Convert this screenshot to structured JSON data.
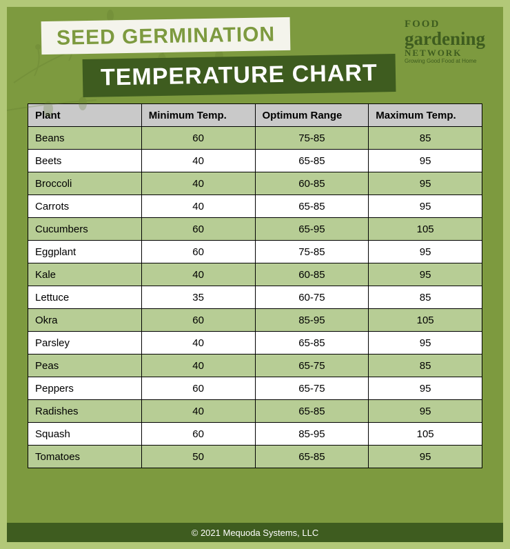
{
  "title_line1": "SEED GERMINATION",
  "title_line2": "TEMPERATURE CHART",
  "logo": {
    "l1": "FOOD",
    "l2": "gardening",
    "l3": "NETWORK",
    "tagline": "Growing Good Food at Home"
  },
  "footer": "© 2021 Mequoda Systems, LLC",
  "style": {
    "outer_bg": "#7d9a3f",
    "outer_border": "#b2c878",
    "title1_bg": "#f4f4ec",
    "title1_color": "#7d9a3f",
    "title1_fontsize": 30,
    "title2_bg": "#3e5c1f",
    "title2_color": "#ffffff",
    "title2_fontsize": 34,
    "header_row_bg": "#c9c9c9",
    "row_alt_bg": "#b7cd95",
    "row_bg": "#ffffff",
    "cell_border": "#000000",
    "cell_fontsize": 15,
    "footer_bg": "#3e5c1f",
    "footer_color": "#ffffff",
    "logo_color": "#3e5c1f",
    "branch_stroke": "#5e7a2f"
  },
  "table": {
    "columns": [
      "Plant",
      "Minimum Temp.",
      "Optimum Range",
      "Maximum Temp."
    ],
    "col_align": [
      "left",
      "center",
      "center",
      "center"
    ],
    "col_widths_pct": [
      25,
      25,
      25,
      25
    ],
    "rows": [
      [
        "Beans",
        "60",
        "75-85",
        "85"
      ],
      [
        "Beets",
        "40",
        "65-85",
        "95"
      ],
      [
        "Broccoli",
        "40",
        "60-85",
        "95"
      ],
      [
        "Carrots",
        "40",
        "65-85",
        "95"
      ],
      [
        "Cucumbers",
        "60",
        "65-95",
        "105"
      ],
      [
        "Eggplant",
        "60",
        "75-85",
        "95"
      ],
      [
        "Kale",
        "40",
        "60-85",
        "95"
      ],
      [
        "Lettuce",
        "35",
        "60-75",
        "85"
      ],
      [
        "Okra",
        "60",
        "85-95",
        "105"
      ],
      [
        "Parsley",
        "40",
        "65-85",
        "95"
      ],
      [
        "Peas",
        "40",
        "65-75",
        "85"
      ],
      [
        "Peppers",
        "60",
        "65-75",
        "95"
      ],
      [
        "Radishes",
        "40",
        "65-85",
        "95"
      ],
      [
        "Squash",
        "60",
        "85-95",
        "105"
      ],
      [
        "Tomatoes",
        "50",
        "65-85",
        "95"
      ]
    ]
  }
}
